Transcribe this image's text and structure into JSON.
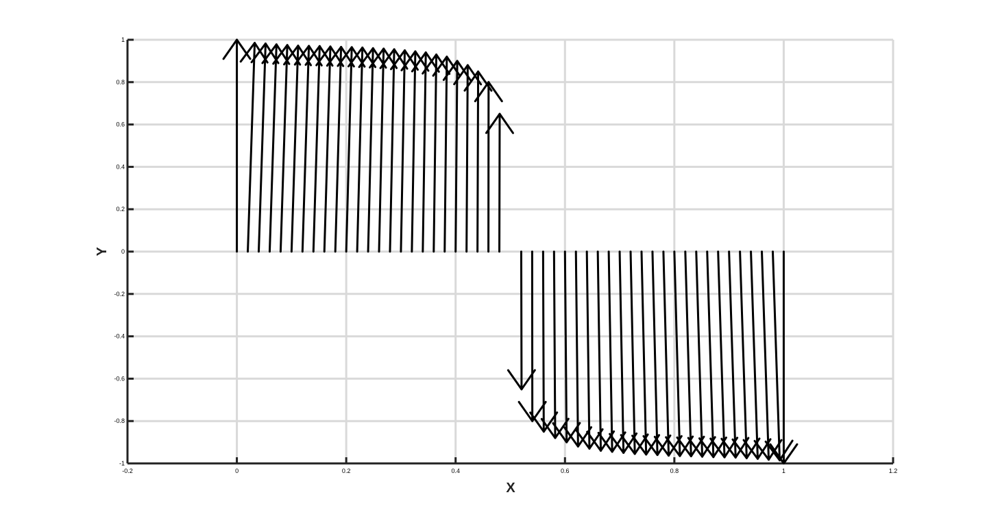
{
  "chart_data": {
    "type": "quiver",
    "title": "",
    "xlabel": "X",
    "ylabel": "Y",
    "xlim": [
      -0.2,
      1.2
    ],
    "ylim": [
      -1,
      1
    ],
    "xticks": [
      -0.2,
      0,
      0.2,
      0.4,
      0.6,
      0.8,
      1,
      1.2
    ],
    "xtick_labels": [
      "-0.2",
      "0",
      "0.2",
      "0.4",
      "0.6",
      "0.8",
      "1",
      "1.2"
    ],
    "yticks": [
      -1,
      -0.8,
      -0.6,
      -0.4,
      -0.2,
      0,
      0.2,
      0.4,
      0.6,
      0.8,
      1
    ],
    "ytick_labels": [
      "-1",
      "-0.8",
      "-0.6",
      "-0.4",
      "-0.2",
      "0",
      "0.2",
      "0.4",
      "0.6",
      "0.8",
      "1"
    ],
    "grid": true,
    "line_color": "#000000",
    "grid_color": "#d9d9d9",
    "vectors": {
      "x": [
        0,
        0.02,
        0.04,
        0.06,
        0.08,
        0.1,
        0.12,
        0.14,
        0.16,
        0.18,
        0.2,
        0.22,
        0.24,
        0.26,
        0.28,
        0.3,
        0.32,
        0.34,
        0.36,
        0.38,
        0.4,
        0.42,
        0.44,
        0.46,
        0.48,
        0.52,
        0.54,
        0.56,
        0.58,
        0.6,
        0.62,
        0.64,
        0.66,
        0.68,
        0.7,
        0.72,
        0.74,
        0.76,
        0.78,
        0.8,
        0.82,
        0.84,
        0.86,
        0.88,
        0.9,
        0.92,
        0.94,
        0.96,
        0.98,
        1
      ],
      "y": [
        0,
        0,
        0,
        0,
        0,
        0,
        0,
        0,
        0,
        0,
        0,
        0,
        0,
        0,
        0,
        0,
        0,
        0,
        0,
        0,
        0,
        0,
        0,
        0,
        0,
        0,
        0,
        0,
        0,
        0,
        0,
        0,
        0,
        0,
        0,
        0,
        0,
        0,
        0,
        0,
        0,
        0,
        0,
        0,
        0,
        0,
        0,
        0,
        0,
        0
      ],
      "u": [
        0,
        0.0126,
        0.0125,
        0.0124,
        0.0122,
        0.012,
        0.0117,
        0.0114,
        0.011,
        0.0106,
        0.0101,
        0.0096,
        0.009,
        0.0084,
        0.0077,
        0.007,
        0.0063,
        0.0055,
        0.0047,
        0.0039,
        0.003,
        0.0021,
        0.0012,
        0.0003,
        0.0006,
        0.0006,
        0.0003,
        0.0012,
        0.0021,
        0.003,
        0.0039,
        0.0047,
        0.0055,
        0.0063,
        0.007,
        0.0077,
        0.0084,
        0.009,
        0.0096,
        0.0101,
        0.0106,
        0.011,
        0.0114,
        0.0117,
        0.012,
        0.0122,
        0.0124,
        0.0125,
        0.0126,
        0
      ],
      "v": [
        1,
        0.985,
        0.982,
        0.978,
        0.975,
        0.972,
        0.971,
        0.97,
        0.968,
        0.966,
        0.965,
        0.963,
        0.96,
        0.958,
        0.955,
        0.95,
        0.945,
        0.94,
        0.93,
        0.92,
        0.9,
        0.88,
        0.85,
        0.8,
        0.65,
        -0.65,
        -0.8,
        -0.85,
        -0.88,
        -0.9,
        -0.92,
        -0.93,
        -0.94,
        -0.945,
        -0.95,
        -0.955,
        -0.958,
        -0.96,
        -0.963,
        -0.965,
        -0.966,
        -0.968,
        -0.97,
        -0.971,
        -0.972,
        -0.975,
        -0.978,
        -0.982,
        -0.985,
        -1
      ]
    }
  }
}
